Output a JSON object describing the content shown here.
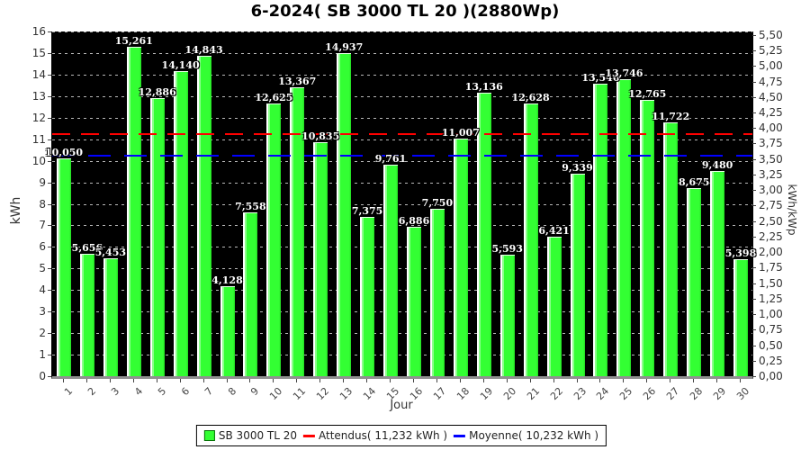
{
  "title": "6-2024( SB 3000 TL 20 )(2880Wp)",
  "chart_data": {
    "type": "bar",
    "title": "6-2024( SB 3000 TL 20 )(2880Wp)",
    "categories": [
      "1",
      "2",
      "3",
      "4",
      "5",
      "6",
      "7",
      "8",
      "9",
      "10",
      "11",
      "12",
      "13",
      "14",
      "15",
      "16",
      "17",
      "18",
      "19",
      "20",
      "21",
      "22",
      "23",
      "24",
      "25",
      "26",
      "27",
      "28",
      "29",
      "30"
    ],
    "series": [
      {
        "name": "SB 3000 TL 20",
        "values": [
          10.05,
          5.656,
          5.453,
          15.261,
          12.886,
          14.14,
          14.843,
          4.128,
          7.558,
          12.625,
          13.367,
          10.835,
          14.937,
          7.375,
          9.761,
          6.886,
          7.75,
          11.007,
          13.136,
          5.593,
          12.628,
          6.421,
          9.339,
          13.546,
          13.746,
          12.765,
          11.722,
          8.675,
          9.48,
          5.398
        ]
      }
    ],
    "reference_lines": [
      {
        "name": "Attendus",
        "value": 11.232,
        "color": "#ff0000",
        "dash": [
          20,
          12
        ]
      },
      {
        "name": "Moyenne",
        "value": 10.232,
        "color": "#0000ff",
        "dash": [
          25,
          15
        ]
      }
    ],
    "xlabel": "Jour",
    "ylabel_left": "kWh",
    "ylabel_right": "kWh/kWp",
    "ylim_left": [
      0,
      16
    ],
    "ytick_step_left": 1,
    "ylim_right": [
      0,
      5.5
    ],
    "ytick_step_right": 0.25,
    "kwh_per_kwhkwp": 2.88,
    "grid": true,
    "legend_position": "bottom",
    "bar_color": "#33ff33",
    "plot_background": "#000000",
    "decimal_separator": ","
  },
  "legend": {
    "series_label": "SB 3000 TL 20",
    "expected_label": "Attendus( 11,232 kWh )",
    "average_label": "Moyenne( 10,232 kWh )"
  }
}
